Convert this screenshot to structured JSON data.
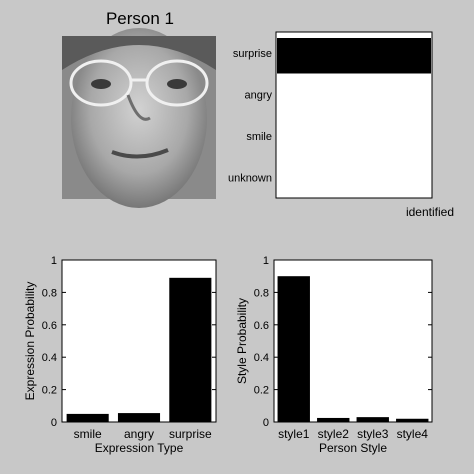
{
  "figure_title": "Person 1",
  "face_image": {
    "description_icon": "grayscale-face-photo"
  },
  "chart_data": [
    {
      "type": "bar",
      "orientation": "horizontal",
      "categories": [
        "unknown",
        "smile",
        "angry",
        "surprise"
      ],
      "values": [
        0,
        0,
        0,
        1
      ],
      "xlabel": "identified",
      "ylabel": "",
      "title": ""
    },
    {
      "type": "bar",
      "categories": [
        "smile",
        "angry",
        "surprise"
      ],
      "values": [
        0.05,
        0.055,
        0.89
      ],
      "xlabel": "Expression Type",
      "ylabel": "Expression Probability",
      "ylim": [
        0,
        1
      ],
      "yticks": [
        "0",
        "0.2",
        "0.4",
        "0.6",
        "0.8",
        "1"
      ],
      "title": ""
    },
    {
      "type": "bar",
      "categories": [
        "style1",
        "style2",
        "style3",
        "style4"
      ],
      "values": [
        0.9,
        0.025,
        0.03,
        0.02
      ],
      "xlabel": "Person Style",
      "ylabel": "Style Probability",
      "ylim": [
        0,
        1
      ],
      "yticks": [
        "0",
        "0.2",
        "0.4",
        "0.6",
        "0.8",
        "1"
      ],
      "title": ""
    }
  ]
}
